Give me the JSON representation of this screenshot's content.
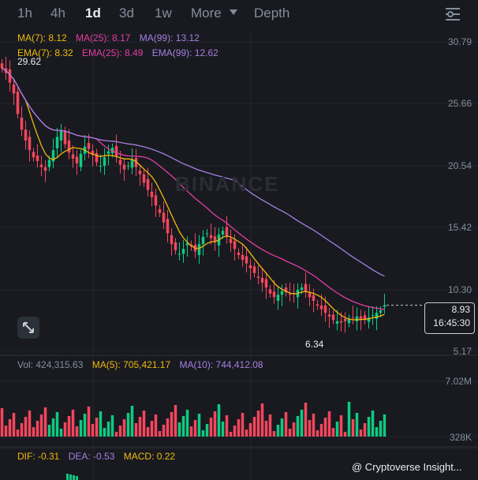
{
  "timeframes": [
    "1h",
    "4h",
    "1d",
    "3d",
    "1w"
  ],
  "active_timeframe": "1d",
  "more_label": "More",
  "depth_label": "Depth",
  "ma_legend": {
    "ma7": "MA(7): 8.12",
    "ma25": "MA(25): 8.17",
    "ma99": "MA(99): 13.12"
  },
  "ema_legend": {
    "ema7": "EMA(7): 8.32",
    "ema25": "EMA(25): 8.49",
    "ema99": "EMA(99): 12.62"
  },
  "price_axis": [
    "30.79",
    "25.66",
    "20.54",
    "15.42",
    "10.30",
    "5.17"
  ],
  "high_label": "29.62",
  "low_label": "6.34",
  "current_price": "8.93",
  "countdown": "16:45:30",
  "watermark": "BINANCE",
  "volume_legend": {
    "vol": "Vol: 424,315.63",
    "ma5": "MA(5): 705,421.17",
    "ma10": "MA(10): 744,412.08"
  },
  "volume_axis": [
    "7.02M",
    "328K"
  ],
  "macd_legend": {
    "dif": "DIF: -0.31",
    "dea": "DEA: -0.53",
    "macd": "MACD: 0.22"
  },
  "credit": "@ Cryptoverse Insight...",
  "colors": {
    "up": "#0ecb81",
    "down": "#f6465d",
    "ma7": "#f0b90b",
    "ma25": "#e53ea0",
    "ma99": "#a77fe0",
    "bg": "#181a20"
  },
  "chart_data": {
    "type": "candlestick",
    "price_axis_ticks": [
      30.79,
      25.66,
      20.54,
      15.42,
      10.3,
      5.17
    ],
    "ylim": [
      5.17,
      30.79
    ],
    "high": 29.62,
    "low": 6.34,
    "last_price": 8.93,
    "close_series": [
      28.6,
      28.2,
      27.4,
      26.5,
      24.8,
      23.5,
      22.6,
      21.8,
      21.2,
      20.9,
      20.4,
      20.1,
      21.0,
      21.8,
      22.9,
      23.4,
      22.3,
      21.6,
      21.1,
      20.7,
      21.5,
      22.1,
      21.9,
      21.4,
      20.8,
      20.5,
      21.2,
      21.7,
      22.0,
      21.3,
      20.6,
      20.2,
      20.5,
      21.0,
      20.4,
      19.8,
      19.1,
      18.5,
      17.9,
      17.2,
      16.6,
      15.8,
      14.9,
      14.0,
      13.5,
      13.2,
      13.6,
      14.1,
      13.8,
      13.4,
      14.0,
      14.6,
      14.9,
      14.5,
      14.2,
      14.8,
      15.1,
      14.6,
      14.1,
      13.6,
      13.1,
      12.7,
      12.4,
      12.0,
      11.6,
      11.2,
      10.8,
      10.4,
      9.9,
      9.6,
      9.8,
      10.1,
      10.0,
      9.8,
      9.9,
      10.2,
      10.4,
      10.1,
      9.6,
      9.3,
      8.9,
      8.6,
      8.3,
      8.0,
      7.7,
      7.6,
      7.5,
      7.6,
      7.8,
      7.9,
      8.0,
      7.8,
      7.7,
      7.9,
      8.1,
      8.3,
      8.5,
      8.93
    ],
    "ma_latest": {
      "MA7": 8.12,
      "MA25": 8.17,
      "MA99": 13.12,
      "EMA7": 8.32,
      "EMA25": 8.49,
      "EMA99": 12.62
    },
    "volume": {
      "latest": 424315.63,
      "ma5": 705421.17,
      "ma10": 744412.08,
      "axis_ticks": [
        "7.02M",
        "328K"
      ]
    },
    "macd": {
      "dif": -0.31,
      "dea": -0.53,
      "macd": 0.22
    }
  }
}
